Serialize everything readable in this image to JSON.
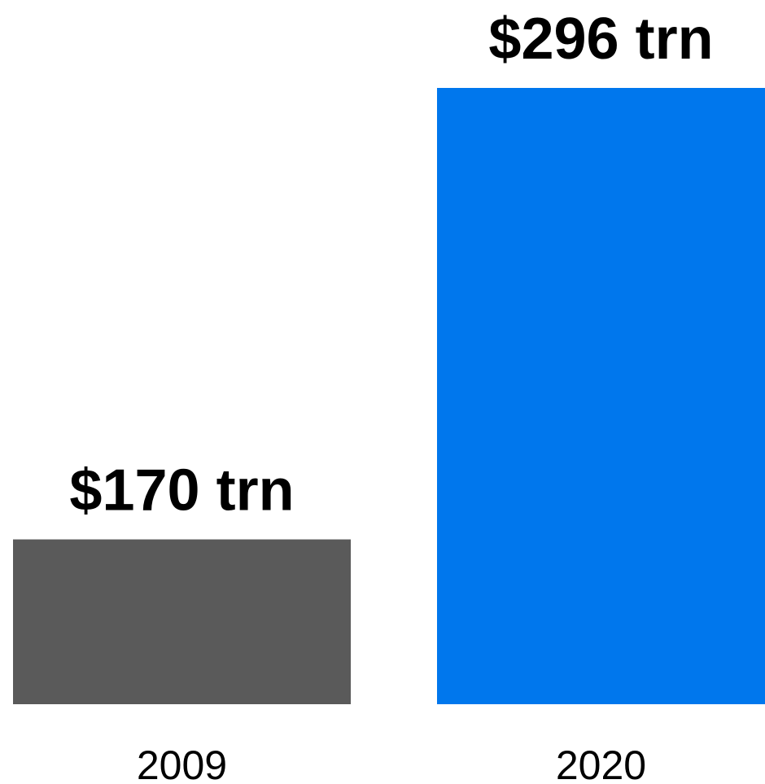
{
  "chart_data": {
    "type": "bar",
    "categories": [
      "2009",
      "2020"
    ],
    "values": [
      170,
      296
    ],
    "data_labels": [
      "$170 trn",
      "$296 trn"
    ],
    "colors": [
      "#5a5a5a",
      "#0077ed"
    ],
    "title": "",
    "xlabel": "",
    "ylabel": "",
    "ylim": [
      124,
      296
    ],
    "grid": false,
    "legend": "none"
  }
}
